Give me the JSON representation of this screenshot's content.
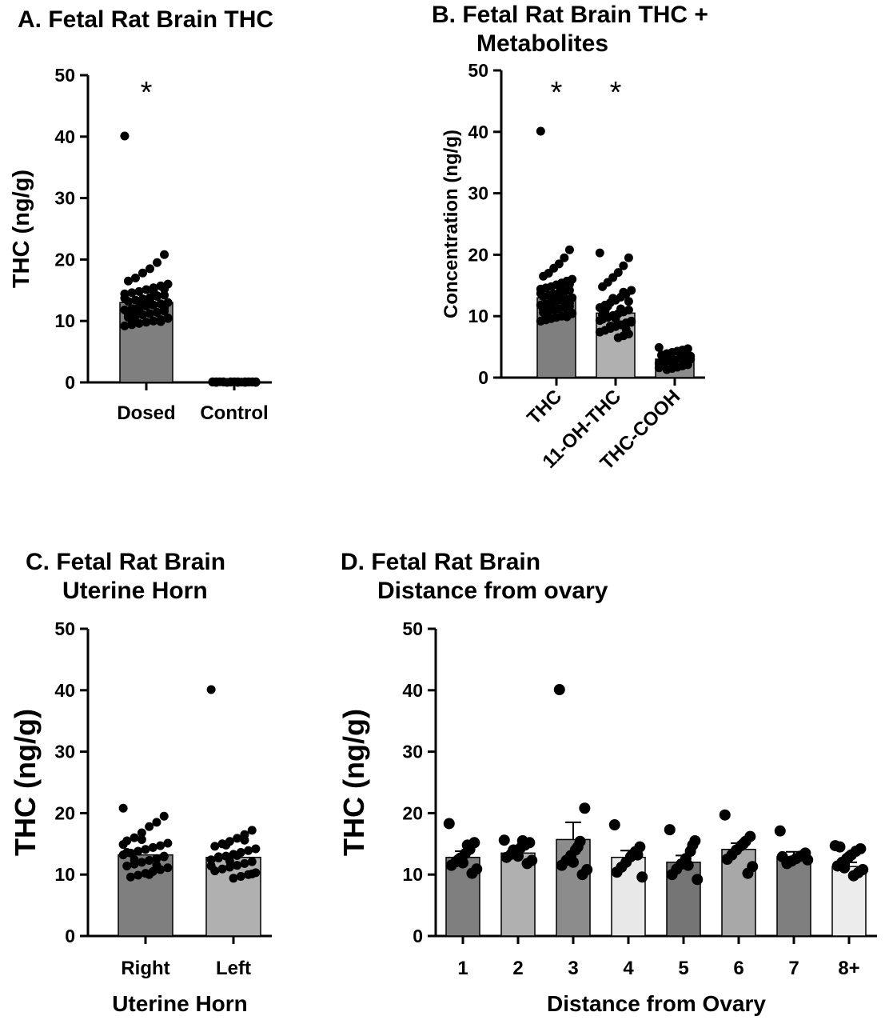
{
  "chart_data": [
    {
      "type": "bar",
      "title": "A. Fetal Rat Brain THC",
      "xlabel": "",
      "ylabel": "THC (ng/g)",
      "ylim": [
        0,
        50
      ],
      "yticks": [
        "0",
        "10",
        "20",
        "30",
        "40",
        "50"
      ],
      "categories": [
        "Dosed",
        "Control"
      ],
      "values": [
        13.0,
        0.1
      ],
      "significance": [
        "*",
        ""
      ],
      "bar_colors": [
        "#7f7f7f",
        "#9a9a9a"
      ],
      "points": [
        [
          40.1,
          20.8,
          19.5,
          18.5,
          17.8,
          17.0,
          16.5,
          16.0,
          15.7,
          15.4,
          15.1,
          14.8,
          14.6,
          14.4,
          14.2,
          14.0,
          13.8,
          13.6,
          13.4,
          13.2,
          13.0,
          12.8,
          12.6,
          12.4,
          12.2,
          12.0,
          11.8,
          11.6,
          11.4,
          11.2,
          11.0,
          10.8,
          10.6,
          10.4,
          10.2,
          10.0,
          9.8,
          9.6,
          9.4,
          9.2,
          15.2,
          14.1,
          13.3,
          12.5,
          11.9,
          11.1,
          10.5,
          9.9,
          14.9,
          12.9,
          11.5,
          10.1,
          13.7,
          12.1
        ],
        [
          0.1,
          0.05,
          0.1,
          0.0,
          0.1,
          0.05,
          0.1,
          0.0,
          0.1,
          0.05,
          0.1,
          0.0,
          0.1,
          0.05,
          0.1,
          0.0,
          0.1,
          0.05,
          0.1,
          0.0,
          0.1,
          0.05
        ]
      ]
    },
    {
      "type": "bar",
      "title": "B. Fetal Rat Brain THC + Metabolites",
      "title_lines": [
        "B. Fetal Rat Brain THC +",
        "Metabolites"
      ],
      "xlabel": "",
      "ylabel": "Concentration (ng/g)",
      "ylim": [
        0,
        50
      ],
      "yticks": [
        "0",
        "10",
        "20",
        "30",
        "40",
        "50"
      ],
      "categories": [
        "THC",
        "11-OH-THC",
        "THC-COOH"
      ],
      "values": [
        13.0,
        10.5,
        3.0
      ],
      "significance": [
        "*",
        "*",
        ""
      ],
      "bar_colors": [
        "#7f7f7f",
        "#b0b0b0",
        "#8c8c8c"
      ],
      "points": [
        [
          40.1,
          20.8,
          19.5,
          18.5,
          17.8,
          17.0,
          16.5,
          16.0,
          15.7,
          15.4,
          15.1,
          14.8,
          14.6,
          14.4,
          14.2,
          14.0,
          13.8,
          13.6,
          13.4,
          13.2,
          13.0,
          12.8,
          12.6,
          12.4,
          12.2,
          12.0,
          11.8,
          11.6,
          11.4,
          11.2,
          11.0,
          10.8,
          10.6,
          10.4,
          10.2,
          10.0,
          9.8,
          9.6,
          9.4,
          9.2,
          15.2,
          14.1,
          13.3,
          12.5,
          11.9,
          11.1,
          10.5,
          9.9,
          14.9,
          12.9,
          11.5,
          10.1,
          13.7,
          12.1
        ],
        [
          20.3,
          19.5,
          18.2,
          17.1,
          16.3,
          15.5,
          14.8,
          14.2,
          13.6,
          13.1,
          12.6,
          12.2,
          11.8,
          11.4,
          11.0,
          10.7,
          10.4,
          10.1,
          9.8,
          9.5,
          9.2,
          8.9,
          8.6,
          8.3,
          8.0,
          7.7,
          7.4,
          7.1,
          6.8,
          6.5,
          12.9,
          11.6,
          10.2,
          9.0,
          7.9,
          11.2,
          9.6,
          8.4,
          10.8,
          9.3,
          12.4,
          13.9
        ],
        [
          4.9,
          4.7,
          4.5,
          4.3,
          4.1,
          3.9,
          3.7,
          3.5,
          3.3,
          3.1,
          2.9,
          2.7,
          2.5,
          2.3,
          2.1,
          1.9,
          1.7,
          1.5,
          1.3,
          3.6,
          3.0,
          2.4,
          4.2,
          2.0,
          3.8,
          2.8,
          1.6,
          3.4
        ]
      ]
    },
    {
      "type": "bar",
      "title": "C. Fetal Rat Brain Uterine Horn",
      "title_lines": [
        "C. Fetal Rat Brain",
        "Uterine Horn"
      ],
      "xlabel": "Uterine Horn",
      "ylabel": "THC (ng/g)",
      "ylim": [
        0,
        50
      ],
      "yticks": [
        "0",
        "10",
        "20",
        "30",
        "40",
        "50"
      ],
      "categories": [
        "Right",
        "Left"
      ],
      "values": [
        13.2,
        12.8
      ],
      "bar_colors": [
        "#7f7f7f",
        "#b0b0b0"
      ],
      "points": [
        [
          20.8,
          19.5,
          18.5,
          17.8,
          16.8,
          16.0,
          15.5,
          15.1,
          14.7,
          14.4,
          14.1,
          13.8,
          13.5,
          13.2,
          12.9,
          12.6,
          12.3,
          12.0,
          11.7,
          11.4,
          11.1,
          10.8,
          10.5,
          10.2,
          9.9,
          9.6,
          14.9,
          13.0,
          11.5,
          10.0,
          15.7,
          12.4,
          13.6
        ],
        [
          40.1,
          17.2,
          16.5,
          15.9,
          15.4,
          15.0,
          14.6,
          14.2,
          13.9,
          13.6,
          13.3,
          13.0,
          12.7,
          12.4,
          12.1,
          11.8,
          11.5,
          11.2,
          10.9,
          10.6,
          10.3,
          10.0,
          9.7,
          9.4,
          14.8,
          12.9,
          11.4,
          10.1,
          15.6,
          13.1,
          12.2
        ]
      ]
    },
    {
      "type": "bar",
      "title": "D. Fetal Rat Brain Distance from ovary",
      "title_lines": [
        "D. Fetal Rat Brain",
        "Distance from ovary"
      ],
      "xlabel": "Distance from Ovary",
      "ylabel": "THC (ng/g)",
      "ylim": [
        0,
        50
      ],
      "yticks": [
        "0",
        "10",
        "20",
        "30",
        "40",
        "50"
      ],
      "categories": [
        "1",
        "2",
        "3",
        "4",
        "5",
        "6",
        "7",
        "8+"
      ],
      "values": [
        12.8,
        13.5,
        15.7,
        12.8,
        12.0,
        14.1,
        12.9,
        11.3
      ],
      "error": [
        1.0,
        0.7,
        2.8,
        1.1,
        1.1,
        1.0,
        0.8,
        0.7
      ],
      "bar_colors": [
        "#7f7f7f",
        "#b0b0b0",
        "#8c8c8c",
        "#e8e8e8",
        "#757575",
        "#a8a8a8",
        "#7f7f7f",
        "#ececec"
      ],
      "points": [
        [
          18.3,
          15.2,
          14.1,
          13.4,
          12.7,
          12.1,
          11.5,
          10.9,
          10.2,
          14.8,
          11.9,
          12.4
        ],
        [
          15.6,
          15.2,
          14.8,
          14.3,
          13.8,
          13.3,
          12.8,
          12.3,
          11.8,
          15.5,
          13.0,
          14.0
        ],
        [
          40.1,
          20.8,
          15.4,
          14.0,
          13.1,
          12.3,
          11.5,
          10.8,
          10.0,
          14.5,
          12.0
        ],
        [
          18.1,
          14.5,
          13.7,
          12.9,
          12.0,
          11.2,
          10.4,
          9.6,
          13.2
        ],
        [
          17.3,
          15.5,
          13.8,
          12.6,
          11.7,
          10.9,
          10.0,
          9.2,
          14.8,
          11.5
        ],
        [
          19.7,
          16.2,
          15.4,
          14.7,
          14.0,
          13.2,
          12.5,
          11.3,
          10.2,
          15.0
        ],
        [
          17.1,
          13.5,
          13.0,
          12.6,
          12.2,
          11.8,
          12.9,
          12.4
        ],
        [
          14.7,
          14.2,
          13.8,
          13.2,
          12.6,
          12.0,
          11.4,
          10.8,
          10.3,
          9.8,
          12.9,
          11.1,
          14.5
        ]
      ]
    }
  ]
}
